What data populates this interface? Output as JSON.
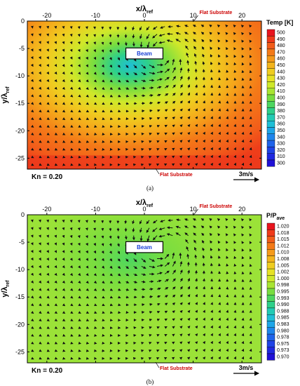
{
  "chart_data": [
    {
      "type": "heatmap",
      "panel": "a",
      "caption": "(a)",
      "xlabel_base": "x/λ",
      "xlabel_sub": "ref",
      "ylabel_base": "y/λ",
      "ylabel_sub": "ref",
      "x_ticks": [
        -20,
        -10,
        0,
        10,
        20
      ],
      "y_ticks": [
        0,
        -5,
        -10,
        -15,
        -20,
        -25
      ],
      "xlim": [
        -24,
        24
      ],
      "ylim": [
        -27,
        0
      ],
      "field": "temperature",
      "colorbar": {
        "title": "Temp [K]",
        "ticks": [
          "500",
          "490",
          "480",
          "470",
          "460",
          "450",
          "440",
          "430",
          "420",
          "410",
          "400",
          "390",
          "380",
          "370",
          "360",
          "350",
          "340",
          "330",
          "320",
          "310",
          "300"
        ],
        "colors": [
          "#e8141e",
          "#f03a1a",
          "#f25d1a",
          "#f47a18",
          "#f59a1a",
          "#f3b41c",
          "#efcd20",
          "#e6e225",
          "#cfe82a",
          "#a9e532",
          "#78dd40",
          "#4dd660",
          "#2ed08a",
          "#22cbb4",
          "#1fbfd6",
          "#1ea6e8",
          "#1e85ec",
          "#1f63ea",
          "#1f43e6",
          "#1f28e0",
          "#2010d6"
        ]
      },
      "annotations": {
        "top_substrate": "Flat Substrate",
        "bottom_substrate": "Flat Substrate",
        "beam": "Beam",
        "kn": "Kn = 0.20",
        "scale": "3m/s"
      }
    },
    {
      "type": "heatmap",
      "panel": "b",
      "caption": "(b)",
      "xlabel_base": "x/λ",
      "xlabel_sub": "ref",
      "ylabel_base": "y/λ",
      "ylabel_sub": "ref",
      "x_ticks": [
        -20,
        -10,
        0,
        10,
        20
      ],
      "y_ticks": [
        0,
        -5,
        -10,
        -15,
        -20,
        -25
      ],
      "xlim": [
        -24,
        24
      ],
      "ylim": [
        -27,
        0
      ],
      "field": "pressure ratio",
      "colorbar": {
        "title_base": "P/P",
        "title_sub": "ave",
        "ticks": [
          "1.020",
          "1.018",
          "1.015",
          "1.012",
          "1.010",
          "1.008",
          "1.005",
          "1.002",
          "1.000",
          "0.998",
          "0.995",
          "0.993",
          "0.990",
          "0.988",
          "0.985",
          "0.983",
          "0.980",
          "0.978",
          "0.975",
          "0.973",
          "0.970"
        ],
        "colors": [
          "#e8141e",
          "#f03a1a",
          "#f25d1a",
          "#f47a18",
          "#f59a1a",
          "#f3b41c",
          "#efcd20",
          "#e6e225",
          "#cfe82a",
          "#a9e532",
          "#78dd40",
          "#4dd660",
          "#2ed08a",
          "#22cbb4",
          "#1fbfd6",
          "#1ea6e8",
          "#1e85ec",
          "#1f63ea",
          "#1f43e6",
          "#1f28e0",
          "#2010d6"
        ]
      },
      "annotations": {
        "top_substrate": "Flat Substrate",
        "bottom_substrate": "Flat Substrate",
        "beam": "Beam",
        "kn": "Kn = 0.20",
        "scale": "3m/s"
      }
    }
  ]
}
